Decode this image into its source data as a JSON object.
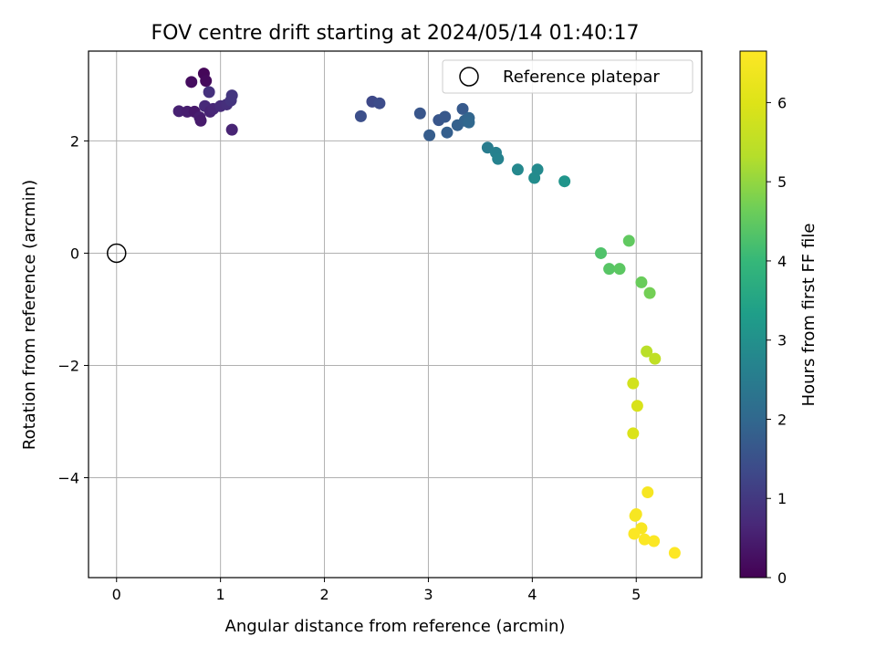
{
  "chart_data": {
    "type": "scatter",
    "title": "FOV centre drift starting at 2024/05/14 01:40:17",
    "xlabel": "Angular distance from reference (arcmin)",
    "ylabel": "Rotation from reference (arcmin)",
    "xlim": [
      -0.27,
      5.63
    ],
    "ylim": [
      -5.78,
      3.6
    ],
    "xticks": [
      0,
      1,
      2,
      3,
      4,
      5
    ],
    "yticks": [
      -4,
      -2,
      0,
      2
    ],
    "grid": true,
    "legend": {
      "placement": "top-right",
      "entries": [
        "Reference platepar"
      ]
    },
    "colorbar": {
      "label": "Hours from first FF file",
      "min": 0,
      "max": 6.65,
      "ticks": [
        0,
        1,
        2,
        3,
        4,
        5,
        6
      ],
      "colormap": "viridis"
    },
    "reference_point": {
      "x": 0,
      "y": 0,
      "label": "Reference platepar"
    },
    "points": [
      {
        "x": 0.6,
        "y": 2.53,
        "c": 0.55
      },
      {
        "x": 0.68,
        "y": 2.52,
        "c": 0.5
      },
      {
        "x": 0.72,
        "y": 3.05,
        "c": 0.2
      },
      {
        "x": 0.75,
        "y": 2.52,
        "c": 0.4
      },
      {
        "x": 0.8,
        "y": 2.42,
        "c": 0.5
      },
      {
        "x": 0.81,
        "y": 2.36,
        "c": 0.45
      },
      {
        "x": 0.84,
        "y": 3.2,
        "c": 0.1
      },
      {
        "x": 0.86,
        "y": 3.07,
        "c": 0.15
      },
      {
        "x": 0.85,
        "y": 2.62,
        "c": 0.7
      },
      {
        "x": 0.89,
        "y": 2.87,
        "c": 0.85
      },
      {
        "x": 0.9,
        "y": 2.52,
        "c": 0.6
      },
      {
        "x": 0.93,
        "y": 2.57,
        "c": 0.65
      },
      {
        "x": 1.0,
        "y": 2.62,
        "c": 0.75
      },
      {
        "x": 1.06,
        "y": 2.65,
        "c": 0.8
      },
      {
        "x": 1.1,
        "y": 2.72,
        "c": 0.9
      },
      {
        "x": 1.11,
        "y": 2.81,
        "c": 0.95
      },
      {
        "x": 1.11,
        "y": 2.2,
        "c": 0.6
      },
      {
        "x": 2.35,
        "y": 2.44,
        "c": 1.45
      },
      {
        "x": 2.46,
        "y": 2.7,
        "c": 1.3
      },
      {
        "x": 2.53,
        "y": 2.67,
        "c": 1.4
      },
      {
        "x": 2.92,
        "y": 2.49,
        "c": 1.6
      },
      {
        "x": 3.01,
        "y": 2.1,
        "c": 1.75
      },
      {
        "x": 3.1,
        "y": 2.37,
        "c": 1.6
      },
      {
        "x": 3.16,
        "y": 2.43,
        "c": 1.65
      },
      {
        "x": 3.18,
        "y": 2.15,
        "c": 1.8
      },
      {
        "x": 3.28,
        "y": 2.28,
        "c": 1.85
      },
      {
        "x": 3.33,
        "y": 2.57,
        "c": 1.7
      },
      {
        "x": 3.35,
        "y": 2.36,
        "c": 1.9
      },
      {
        "x": 3.39,
        "y": 2.41,
        "c": 1.95
      },
      {
        "x": 3.39,
        "y": 2.33,
        "c": 2.0
      },
      {
        "x": 3.57,
        "y": 1.88,
        "c": 2.5
      },
      {
        "x": 3.65,
        "y": 1.79,
        "c": 2.6
      },
      {
        "x": 3.67,
        "y": 1.68,
        "c": 2.65
      },
      {
        "x": 3.86,
        "y": 1.49,
        "c": 2.8
      },
      {
        "x": 4.02,
        "y": 1.34,
        "c": 2.9
      },
      {
        "x": 4.05,
        "y": 1.49,
        "c": 2.85
      },
      {
        "x": 4.31,
        "y": 1.28,
        "c": 3.1
      },
      {
        "x": 4.66,
        "y": 0.0,
        "c": 4.3
      },
      {
        "x": 4.74,
        "y": -0.28,
        "c": 4.4
      },
      {
        "x": 4.84,
        "y": -0.28,
        "c": 4.45
      },
      {
        "x": 4.93,
        "y": 0.22,
        "c": 4.5
      },
      {
        "x": 5.05,
        "y": -0.52,
        "c": 4.6
      },
      {
        "x": 5.13,
        "y": -0.71,
        "c": 4.7
      },
      {
        "x": 5.1,
        "y": -1.75,
        "c": 5.4
      },
      {
        "x": 5.18,
        "y": -1.88,
        "c": 5.5
      },
      {
        "x": 4.97,
        "y": -2.32,
        "c": 5.8
      },
      {
        "x": 5.01,
        "y": -2.72,
        "c": 5.9
      },
      {
        "x": 4.97,
        "y": -3.21,
        "c": 5.95
      },
      {
        "x": 5.11,
        "y": -4.26,
        "c": 6.5
      },
      {
        "x": 5.0,
        "y": -4.65,
        "c": 6.55
      },
      {
        "x": 4.99,
        "y": -4.68,
        "c": 6.5
      },
      {
        "x": 5.05,
        "y": -4.9,
        "c": 6.55
      },
      {
        "x": 4.98,
        "y": -5.0,
        "c": 6.6
      },
      {
        "x": 5.08,
        "y": -5.1,
        "c": 6.6
      },
      {
        "x": 5.17,
        "y": -5.13,
        "c": 6.6
      },
      {
        "x": 5.37,
        "y": -5.34,
        "c": 6.65
      }
    ]
  }
}
